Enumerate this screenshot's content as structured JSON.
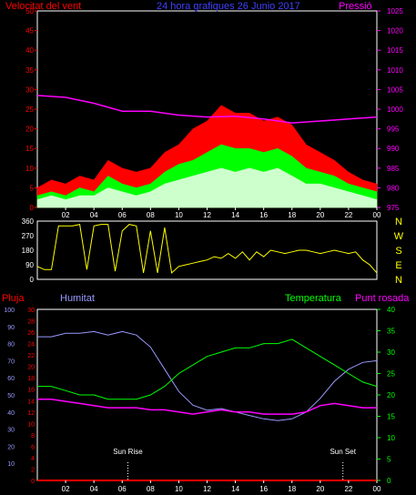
{
  "colors": {
    "background": "#000000",
    "red": "#ff0000",
    "magenta": "#ff00ff",
    "green": "#00ff00",
    "light_green": "#ccffcc",
    "blue": "#4040ff",
    "lavender": "#9999ff",
    "yellow": "#ffff00",
    "white": "#ffffff",
    "frame": "#ffffff",
    "grid": "#444444"
  },
  "x_ticks": [
    "02",
    "04",
    "06",
    "08",
    "10",
    "12",
    "14",
    "16",
    "18",
    "20",
    "22",
    "00"
  ],
  "chart_data": [
    {
      "id": "wind",
      "type": "area",
      "title": "24 hora grafiques  26 Junio 2017",
      "left_axis_title": "Velocitat del vent",
      "right_axis_title": "Pressió",
      "left_ticks": [
        "0",
        "5",
        "10",
        "15",
        "20",
        "25",
        "30",
        "35",
        "40",
        "45",
        "50"
      ],
      "right_ticks": [
        "975",
        "980",
        "985",
        "990",
        "995",
        "1000",
        "1005",
        "1010",
        "1015",
        "1020",
        "1025"
      ],
      "ylim_left": [
        0,
        50
      ],
      "ylim_right": [
        975,
        1025
      ],
      "xlim_hours": [
        0,
        24
      ],
      "series": [
        {
          "name": "Velocitat del vent",
          "color": "#ff0000",
          "x": [
            0,
            1,
            2,
            3,
            4,
            5,
            6,
            7,
            8,
            9,
            10,
            11,
            12,
            13,
            14,
            15,
            16,
            17,
            18,
            19,
            20,
            21,
            22,
            23,
            24
          ],
          "y": [
            5,
            7,
            6,
            8,
            7,
            12,
            10,
            9,
            10,
            14,
            16,
            20,
            22,
            26,
            24,
            24,
            22,
            23,
            21,
            16,
            14,
            12,
            9,
            7,
            6
          ]
        },
        {
          "name": "",
          "color": "#00ff00",
          "x": [
            0,
            1,
            2,
            3,
            4,
            5,
            6,
            7,
            8,
            9,
            10,
            11,
            12,
            13,
            14,
            15,
            16,
            17,
            18,
            19,
            20,
            21,
            22,
            23,
            24
          ],
          "y": [
            3,
            4,
            3,
            5,
            4,
            8,
            6,
            5,
            6,
            9,
            11,
            12,
            14,
            16,
            15,
            15,
            14,
            15,
            13,
            10,
            9,
            8,
            6,
            5,
            4
          ]
        },
        {
          "name": "",
          "color": "#ccffcc",
          "x": [
            0,
            1,
            2,
            3,
            4,
            5,
            6,
            7,
            8,
            9,
            10,
            11,
            12,
            13,
            14,
            15,
            16,
            17,
            18,
            19,
            20,
            21,
            22,
            23,
            24
          ],
          "y": [
            2,
            3,
            2,
            3,
            3,
            5,
            4,
            3,
            4,
            6,
            7,
            8,
            9,
            10,
            9,
            10,
            9,
            10,
            8,
            6,
            6,
            5,
            4,
            3,
            2
          ]
        },
        {
          "name": "Pressió",
          "color": "#ff00ff",
          "x": [
            0,
            2,
            4,
            6,
            8,
            10,
            12,
            14,
            16,
            18,
            20,
            22,
            24
          ],
          "y": [
            1003.5,
            1003,
            1001.5,
            999.5,
            999.5,
            998.5,
            998,
            998.2,
            997.5,
            996.5,
            997,
            997.5,
            998
          ]
        }
      ]
    },
    {
      "id": "direction",
      "type": "line",
      "left_ticks": [
        "0",
        "90",
        "180",
        "270",
        "360"
      ],
      "right_ticks": [
        "N",
        "E",
        "S",
        "W",
        "N"
      ],
      "ylim": [
        0,
        360
      ],
      "xlim_hours": [
        0,
        24
      ],
      "series": [
        {
          "name": "",
          "color": "#ffff00",
          "x": [
            0,
            0.5,
            1,
            1.5,
            2,
            2.5,
            3,
            3.5,
            4,
            4.5,
            5,
            5.5,
            6,
            6.5,
            7,
            7.5,
            8,
            8.5,
            9,
            9.5,
            10,
            10.5,
            11,
            11.5,
            12,
            12.5,
            13,
            13.5,
            14,
            14.5,
            15,
            15.5,
            16,
            16.5,
            17,
            17.5,
            18,
            18.5,
            19,
            19.5,
            20,
            20.5,
            21,
            21.5,
            22,
            22.5,
            23,
            23.5,
            24
          ],
          "y": [
            80,
            60,
            60,
            330,
            330,
            330,
            340,
            60,
            330,
            340,
            340,
            50,
            300,
            340,
            330,
            40,
            300,
            40,
            320,
            40,
            80,
            90,
            100,
            110,
            120,
            140,
            130,
            160,
            130,
            170,
            120,
            170,
            140,
            180,
            170,
            160,
            170,
            180,
            180,
            170,
            160,
            170,
            180,
            170,
            160,
            170,
            120,
            90,
            40
          ]
        }
      ]
    },
    {
      "id": "climate",
      "type": "line",
      "labels": [
        "Pluja",
        "Humitat",
        "Temperatura",
        "Punt rosada"
      ],
      "rain_ticks": [
        "0",
        "2",
        "4",
        "6",
        "8",
        "10",
        "12",
        "14",
        "16",
        "18",
        "20",
        "22",
        "24",
        "26",
        "28",
        "30"
      ],
      "humidity_ticks": [
        "10",
        "20",
        "30",
        "40",
        "50",
        "60",
        "70",
        "80",
        "90",
        "100"
      ],
      "temp_ticks": [
        "0",
        "5",
        "10",
        "15",
        "20",
        "25",
        "30",
        "35",
        "40"
      ],
      "ylim_rain": [
        0,
        30
      ],
      "ylim_humidity": [
        0,
        100
      ],
      "ylim_temp": [
        0,
        40
      ],
      "xlim_hours": [
        0,
        24
      ],
      "annotations": [
        {
          "label": "Sun Rise",
          "hour": 6.4
        },
        {
          "label": "Sun Set",
          "hour": 21.6
        }
      ],
      "series": [
        {
          "name": "Humitat",
          "color": "#9999ff",
          "x": [
            0,
            1,
            2,
            3,
            4,
            5,
            6,
            7,
            8,
            9,
            10,
            11,
            12,
            13,
            14,
            15,
            16,
            17,
            18,
            19,
            20,
            21,
            22,
            23,
            24
          ],
          "y": [
            84,
            84,
            86,
            86,
            87,
            85,
            87,
            85,
            78,
            65,
            52,
            44,
            41,
            42,
            40,
            38,
            36,
            35,
            36,
            40,
            48,
            58,
            65,
            69,
            70
          ]
        },
        {
          "name": "Temperatura",
          "color": "#00ff00",
          "x": [
            0,
            1,
            2,
            3,
            4,
            5,
            6,
            7,
            8,
            9,
            10,
            11,
            12,
            13,
            14,
            15,
            16,
            17,
            18,
            19,
            20,
            21,
            22,
            23,
            24
          ],
          "y": [
            22,
            22,
            21,
            20,
            20,
            19,
            19,
            19,
            20,
            22,
            25,
            27,
            29,
            30,
            31,
            31,
            32,
            32,
            33,
            31,
            29,
            27,
            25,
            23,
            22
          ]
        },
        {
          "name": "Punt rosada",
          "color": "#ff00ff",
          "x": [
            0,
            1,
            2,
            3,
            4,
            5,
            6,
            7,
            8,
            9,
            10,
            11,
            12,
            13,
            14,
            15,
            16,
            17,
            18,
            19,
            20,
            21,
            22,
            23,
            24
          ],
          "y": [
            19,
            19,
            18.5,
            18,
            17.5,
            17,
            17,
            17,
            16.5,
            16.5,
            16,
            15.5,
            16,
            16.5,
            16,
            16,
            15.5,
            15.5,
            15.5,
            16,
            17.5,
            18,
            17.5,
            17,
            17
          ]
        },
        {
          "name": "Pluja",
          "color": "#ff0000",
          "x": [
            0,
            24
          ],
          "y": [
            0,
            0
          ]
        }
      ]
    }
  ]
}
